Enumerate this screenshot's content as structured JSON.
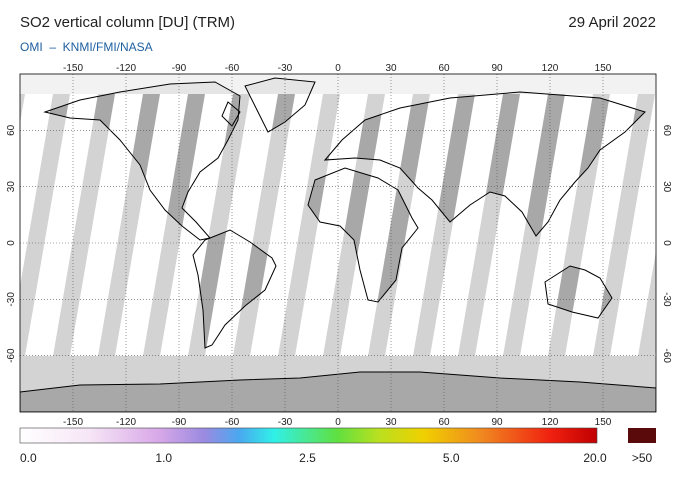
{
  "header": {
    "title": "SO2 vertical column [DU] (TRM)",
    "date": "29 April 2022",
    "source": "OMI  –  KNMI/FMI/NASA"
  },
  "map": {
    "lon_ticks": [
      -150,
      -120,
      -90,
      -60,
      -30,
      0,
      30,
      60,
      90,
      120,
      150
    ],
    "lat_ticks": [
      60,
      30,
      0,
      -30,
      -60
    ]
  },
  "colorbar": {
    "labels": [
      "0.0",
      "1.0",
      "2.5",
      "5.0",
      "20.0"
    ],
    "overflow_label": ">50"
  }
}
